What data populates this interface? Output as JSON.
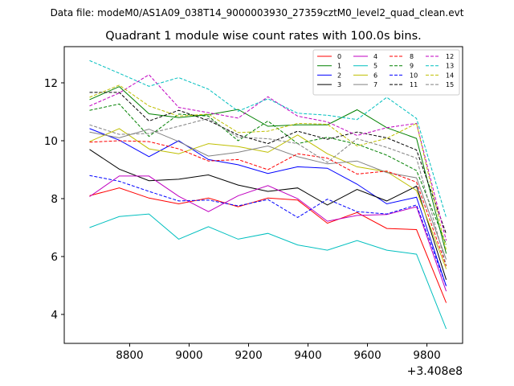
{
  "header": {
    "data_file_label": "Data file: modeM0/AS1A09_038T14_9000003930_27359cztM0_level2_quad_clean.evt"
  },
  "chart_data": {
    "type": "line",
    "title": "Quadrant 1 module wise count rates with 100.0s bins.",
    "xlabel": "",
    "ylabel": "",
    "x_offset_label": "+3.408e8",
    "x": [
      8665,
      8765,
      8865,
      8965,
      9065,
      9165,
      9265,
      9365,
      9465,
      9565,
      9665,
      9765,
      9865
    ],
    "xlim": [
      8580,
      9920
    ],
    "ylim": [
      3.0,
      13.25
    ],
    "xticks": [
      8800,
      9000,
      9200,
      9400,
      9600,
      9800
    ],
    "yticks": [
      4,
      6,
      8,
      10,
      12
    ],
    "legend_position": "top-right",
    "series": [
      {
        "name": "0",
        "color": "#ff0000",
        "dash": "solid",
        "values": [
          8.1,
          8.37,
          8.02,
          7.82,
          8.02,
          7.72,
          8.02,
          7.95,
          7.15,
          7.52,
          6.97,
          6.93,
          4.4
        ]
      },
      {
        "name": "1",
        "color": "#008000",
        "dash": "solid",
        "values": [
          11.42,
          11.87,
          10.93,
          10.8,
          10.9,
          11.08,
          10.5,
          10.55,
          10.55,
          11.07,
          10.45,
          10.08,
          6.1
        ]
      },
      {
        "name": "2",
        "color": "#0000ff",
        "dash": "solid",
        "values": [
          10.42,
          10.02,
          9.45,
          10.0,
          9.35,
          9.17,
          8.87,
          9.1,
          9.05,
          8.5,
          7.82,
          8.05,
          4.98
        ]
      },
      {
        "name": "3",
        "color": "#000000",
        "dash": "solid",
        "values": [
          9.7,
          9.02,
          8.62,
          8.67,
          8.82,
          8.47,
          8.25,
          8.37,
          7.78,
          8.32,
          7.92,
          8.43,
          5.2
        ]
      },
      {
        "name": "4",
        "color": "#c000c0",
        "dash": "solid",
        "values": [
          8.07,
          8.78,
          8.78,
          8.08,
          7.55,
          8.1,
          8.45,
          8.0,
          7.22,
          7.42,
          7.45,
          7.72,
          4.8
        ]
      },
      {
        "name": "5",
        "color": "#00bfbf",
        "dash": "solid",
        "values": [
          7.0,
          7.38,
          7.47,
          6.6,
          7.03,
          6.6,
          6.8,
          6.4,
          6.22,
          6.55,
          6.22,
          6.08,
          3.5
        ]
      },
      {
        "name": "6",
        "color": "#bfbf00",
        "dash": "solid",
        "values": [
          9.97,
          10.42,
          9.72,
          9.55,
          9.9,
          9.8,
          9.6,
          10.2,
          9.55,
          9.1,
          8.93,
          8.28,
          5.57
        ]
      },
      {
        "name": "7",
        "color": "#808080",
        "dash": "solid",
        "values": [
          10.3,
          10.1,
          10.4,
          9.97,
          9.47,
          9.6,
          9.82,
          9.45,
          9.2,
          9.3,
          8.9,
          8.72,
          5.9
        ]
      },
      {
        "name": "8",
        "color": "#ff0000",
        "dash": "dashed",
        "values": [
          9.95,
          10.0,
          9.97,
          9.72,
          9.3,
          9.35,
          9.0,
          9.55,
          9.4,
          8.85,
          8.95,
          8.57,
          5.67
        ]
      },
      {
        "name": "9",
        "color": "#008000",
        "dash": "dashed",
        "values": [
          11.05,
          11.27,
          10.15,
          10.92,
          10.85,
          10.0,
          10.68,
          9.9,
          10.12,
          9.88,
          9.5,
          8.97,
          6.42
        ]
      },
      {
        "name": "10",
        "color": "#0000ff",
        "dash": "dashed",
        "values": [
          8.8,
          8.6,
          8.25,
          7.92,
          7.95,
          7.75,
          7.97,
          7.35,
          7.98,
          7.55,
          7.47,
          7.78,
          4.98
        ]
      },
      {
        "name": "11",
        "color": "#000000",
        "dash": "dashed",
        "values": [
          11.67,
          11.67,
          10.68,
          11.05,
          10.7,
          10.2,
          9.9,
          10.33,
          10.05,
          10.3,
          10.1,
          9.68,
          6.78
        ]
      },
      {
        "name": "12",
        "color": "#c000c0",
        "dash": "dashed",
        "values": [
          11.2,
          11.65,
          12.28,
          11.15,
          10.97,
          10.78,
          11.52,
          10.85,
          10.65,
          10.18,
          10.45,
          10.6,
          6.55
        ]
      },
      {
        "name": "13",
        "color": "#00bfbf",
        "dash": "dashed",
        "values": [
          12.77,
          12.33,
          11.88,
          12.18,
          11.78,
          11.02,
          11.45,
          10.95,
          10.88,
          10.73,
          11.5,
          10.77,
          7.35
        ]
      },
      {
        "name": "14",
        "color": "#bfbf00",
        "dash": "dashed",
        "values": [
          11.5,
          11.92,
          11.2,
          10.85,
          10.92,
          10.28,
          10.33,
          10.6,
          10.57,
          9.82,
          10.08,
          10.6,
          6.22
        ]
      },
      {
        "name": "15",
        "color": "#808080",
        "dash": "dashed",
        "values": [
          10.55,
          10.22,
          10.25,
          10.5,
          10.77,
          10.12,
          10.07,
          9.9,
          9.25,
          10.07,
          9.77,
          9.4,
          5.7
        ]
      }
    ]
  }
}
